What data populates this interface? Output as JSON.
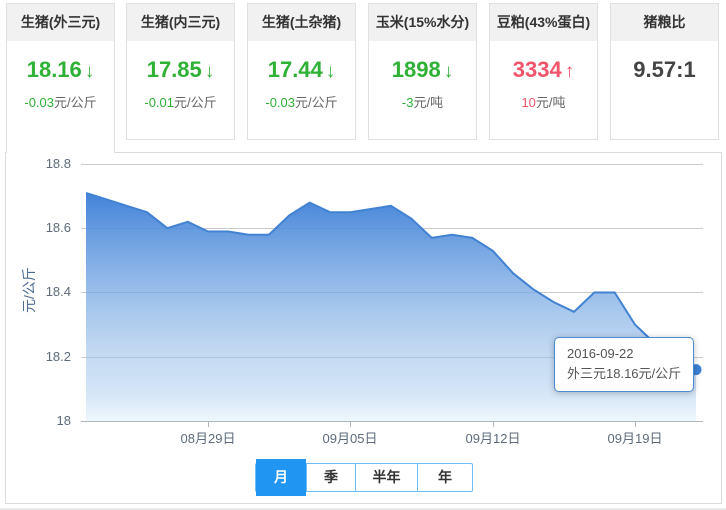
{
  "cards": [
    {
      "title": "生猪(外三元)",
      "value": "18.16",
      "arrow": "↓",
      "trend": "down",
      "change": "-0.03",
      "unit": "元/公斤"
    },
    {
      "title": "生猪(内三元)",
      "value": "17.85",
      "arrow": "↓",
      "trend": "down",
      "change": "-0.01",
      "unit": "元/公斤"
    },
    {
      "title": "生猪(土杂猪)",
      "value": "17.44",
      "arrow": "↓",
      "trend": "down",
      "change": "-0.03",
      "unit": "元/公斤"
    },
    {
      "title": "玉米(15%水分)",
      "value": "1898",
      "arrow": "↓",
      "trend": "down",
      "change": "-3",
      "unit": "元/吨"
    },
    {
      "title": "豆粕(43%蛋白)",
      "value": "3334",
      "arrow": "↑",
      "trend": "up",
      "change": "10",
      "unit": "元/吨"
    },
    {
      "title": "猪粮比",
      "value": "9.57:1",
      "arrow": "",
      "trend": "neutral",
      "change": "",
      "unit": ""
    }
  ],
  "chart_data": {
    "type": "area",
    "series_name": "外三元",
    "ylabel": "元/公斤",
    "ylim": [
      18,
      18.8
    ],
    "y_ticks": [
      "18.8",
      "18.6",
      "18.4",
      "18.2",
      "18"
    ],
    "x_tick_labels": [
      "08月29日",
      "09月05日",
      "09月12日",
      "09月19日"
    ],
    "x_tick_indices": [
      6,
      13,
      20,
      27
    ],
    "grid": true,
    "legend_position": "none",
    "x": [
      "08月23日",
      "08月24日",
      "08月25日",
      "08月26日",
      "08月27日",
      "08月28日",
      "08月29日",
      "08月30日",
      "08月31日",
      "09月01日",
      "09月02日",
      "09月03日",
      "09月04日",
      "09月05日",
      "09月06日",
      "09月07日",
      "09月08日",
      "09月09日",
      "09月10日",
      "09月11日",
      "09月12日",
      "09月13日",
      "09月14日",
      "09月15日",
      "09月16日",
      "09月17日",
      "09月18日",
      "09月19日",
      "09月20日",
      "09月21日",
      "09月22日"
    ],
    "values": [
      18.71,
      18.69,
      18.67,
      18.65,
      18.6,
      18.62,
      18.59,
      18.59,
      18.58,
      18.58,
      18.64,
      18.68,
      18.65,
      18.65,
      18.66,
      18.67,
      18.63,
      18.57,
      18.58,
      18.57,
      18.53,
      18.46,
      18.41,
      18.37,
      18.34,
      18.4,
      18.4,
      18.3,
      18.24,
      18.19,
      18.16
    ]
  },
  "tooltip": {
    "date": "2016-09-22",
    "text": "外三元18.16元/公斤"
  },
  "tabs": [
    {
      "label": "月",
      "active": true
    },
    {
      "label": "季",
      "active": false
    },
    {
      "label": "半年",
      "active": false
    },
    {
      "label": "年",
      "active": false
    }
  ],
  "colors": {
    "down_green": "#2eb135",
    "up_red": "#f2546b",
    "accent_blue": "#2095f2",
    "line_blue": "#4282d2",
    "area_top": "#3e80d8"
  }
}
